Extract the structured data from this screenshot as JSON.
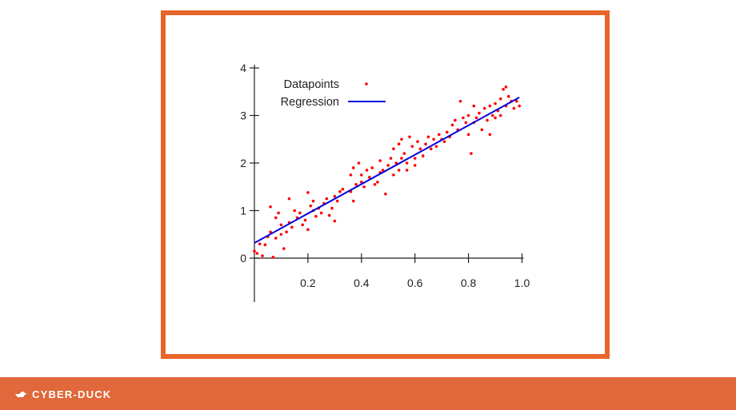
{
  "footer": {
    "brand_text": "CYBER-DUCK",
    "brand_icon": "duck-icon",
    "background_color": "#e0683a",
    "text_color": "#ffffff"
  },
  "frame": {
    "border_color": "#e8652a"
  },
  "chart_data": {
    "type": "scatter",
    "title": "",
    "xlabel": "",
    "ylabel": "",
    "xlim": [
      0,
      1.0
    ],
    "ylim": [
      0,
      4
    ],
    "x_ticks": [
      {
        "value": 0.2,
        "label": "0.2"
      },
      {
        "value": 0.4,
        "label": "0.4"
      },
      {
        "value": 0.6,
        "label": "0.6"
      },
      {
        "value": 0.8,
        "label": "0.8"
      },
      {
        "value": 1.0,
        "label": "1.0"
      }
    ],
    "y_ticks": [
      {
        "value": 0,
        "label": "0"
      },
      {
        "value": 1,
        "label": "1"
      },
      {
        "value": 2,
        "label": "2"
      },
      {
        "value": 3,
        "label": "3"
      },
      {
        "value": 4,
        "label": "4"
      }
    ],
    "grid": false,
    "legend": {
      "position": "top-left",
      "entries": [
        {
          "label": "Datapoints",
          "marker": "dot",
          "color": "#ff0000"
        },
        {
          "label": "Regression",
          "marker": "line",
          "color": "#0000dd"
        }
      ]
    },
    "series": [
      {
        "name": "Datapoints",
        "kind": "scatter",
        "color": "#ff0000",
        "points": [
          [
            0.0,
            0.15
          ],
          [
            0.01,
            0.1
          ],
          [
            0.02,
            0.3
          ],
          [
            0.03,
            0.05
          ],
          [
            0.04,
            0.28
          ],
          [
            0.05,
            0.45
          ],
          [
            0.06,
            1.08
          ],
          [
            0.06,
            0.55
          ],
          [
            0.07,
            0.02
          ],
          [
            0.08,
            0.42
          ],
          [
            0.08,
            0.85
          ],
          [
            0.09,
            0.95
          ],
          [
            0.1,
            0.5
          ],
          [
            0.1,
            0.7
          ],
          [
            0.11,
            0.2
          ],
          [
            0.12,
            0.55
          ],
          [
            0.13,
            1.25
          ],
          [
            0.13,
            0.75
          ],
          [
            0.14,
            0.65
          ],
          [
            0.15,
            1.0
          ],
          [
            0.16,
            0.85
          ],
          [
            0.17,
            0.95
          ],
          [
            0.18,
            0.7
          ],
          [
            0.19,
            0.8
          ],
          [
            0.2,
            1.38
          ],
          [
            0.2,
            0.6
          ],
          [
            0.21,
            1.1
          ],
          [
            0.22,
            1.0
          ],
          [
            0.22,
            1.2
          ],
          [
            0.23,
            0.88
          ],
          [
            0.24,
            1.05
          ],
          [
            0.25,
            0.95
          ],
          [
            0.26,
            1.15
          ],
          [
            0.27,
            1.25
          ],
          [
            0.28,
            0.9
          ],
          [
            0.29,
            1.05
          ],
          [
            0.3,
            1.3
          ],
          [
            0.3,
            0.78
          ],
          [
            0.31,
            1.2
          ],
          [
            0.32,
            1.4
          ],
          [
            0.33,
            1.45
          ],
          [
            0.36,
            1.75
          ],
          [
            0.36,
            1.4
          ],
          [
            0.37,
            1.9
          ],
          [
            0.37,
            1.2
          ],
          [
            0.38,
            1.55
          ],
          [
            0.39,
            2.0
          ],
          [
            0.4,
            1.75
          ],
          [
            0.4,
            1.6
          ],
          [
            0.41,
            1.5
          ],
          [
            0.42,
            1.85
          ],
          [
            0.43,
            1.7
          ],
          [
            0.44,
            1.9
          ],
          [
            0.45,
            1.55
          ],
          [
            0.46,
            1.6
          ],
          [
            0.47,
            1.8
          ],
          [
            0.47,
            2.05
          ],
          [
            0.48,
            1.85
          ],
          [
            0.49,
            1.35
          ],
          [
            0.5,
            1.95
          ],
          [
            0.51,
            2.1
          ],
          [
            0.52,
            2.3
          ],
          [
            0.52,
            1.75
          ],
          [
            0.53,
            2.0
          ],
          [
            0.54,
            2.4
          ],
          [
            0.54,
            1.85
          ],
          [
            0.55,
            2.5
          ],
          [
            0.55,
            2.1
          ],
          [
            0.56,
            2.2
          ],
          [
            0.57,
            2.0
          ],
          [
            0.57,
            1.85
          ],
          [
            0.58,
            2.55
          ],
          [
            0.59,
            2.35
          ],
          [
            0.6,
            2.1
          ],
          [
            0.6,
            1.95
          ],
          [
            0.61,
            2.45
          ],
          [
            0.62,
            2.3
          ],
          [
            0.63,
            2.15
          ],
          [
            0.64,
            2.4
          ],
          [
            0.65,
            2.55
          ],
          [
            0.66,
            2.3
          ],
          [
            0.67,
            2.5
          ],
          [
            0.68,
            2.35
          ],
          [
            0.69,
            2.6
          ],
          [
            0.7,
            2.5
          ],
          [
            0.71,
            2.45
          ],
          [
            0.72,
            2.65
          ],
          [
            0.73,
            2.55
          ],
          [
            0.74,
            2.8
          ],
          [
            0.75,
            2.9
          ],
          [
            0.76,
            2.7
          ],
          [
            0.77,
            3.3
          ],
          [
            0.78,
            2.95
          ],
          [
            0.79,
            2.85
          ],
          [
            0.8,
            2.6
          ],
          [
            0.8,
            3.0
          ],
          [
            0.81,
            2.2
          ],
          [
            0.82,
            3.2
          ],
          [
            0.82,
            2.85
          ],
          [
            0.83,
            2.95
          ],
          [
            0.84,
            3.05
          ],
          [
            0.85,
            2.7
          ],
          [
            0.86,
            3.15
          ],
          [
            0.87,
            2.9
          ],
          [
            0.88,
            3.2
          ],
          [
            0.88,
            2.6
          ],
          [
            0.89,
            3.0
          ],
          [
            0.9,
            3.25
          ],
          [
            0.9,
            2.95
          ],
          [
            0.91,
            3.1
          ],
          [
            0.92,
            3.35
          ],
          [
            0.92,
            3.0
          ],
          [
            0.93,
            3.55
          ],
          [
            0.94,
            3.2
          ],
          [
            0.94,
            3.6
          ],
          [
            0.95,
            3.4
          ],
          [
            0.96,
            3.3
          ],
          [
            0.97,
            3.15
          ],
          [
            0.98,
            3.3
          ],
          [
            0.99,
            3.2
          ]
        ]
      },
      {
        "name": "Regression",
        "kind": "line",
        "color": "#0000dd",
        "points": [
          [
            0.0,
            0.32
          ],
          [
            0.99,
            3.38
          ]
        ]
      }
    ]
  }
}
